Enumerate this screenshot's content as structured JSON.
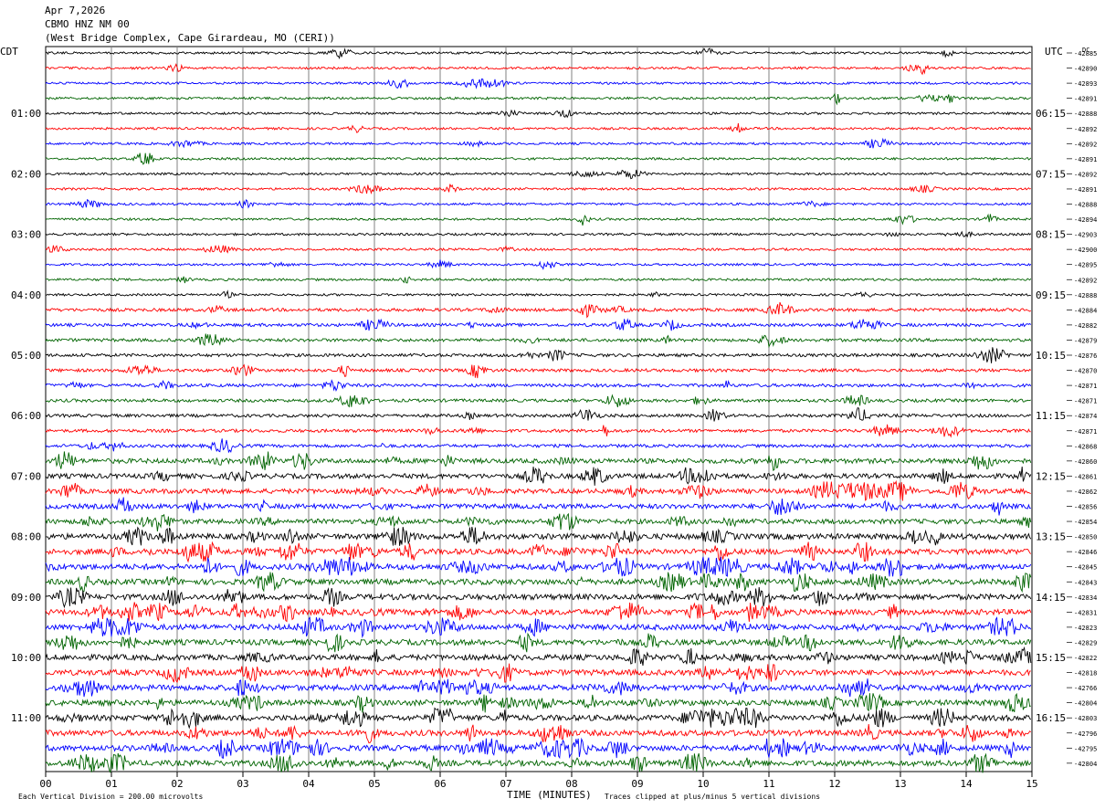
{
  "header": {
    "date": "Apr 7,2026",
    "station": "CBMO HNZ NM 00",
    "location": "(West Bridge Complex, Cape Girardeau, MO (CERI))"
  },
  "axis_labels": {
    "left_zone": "CDT",
    "right_zone": "UTC",
    "dc_label": "DC",
    "x_title": "TIME (MINUTES)",
    "scale_note": "Each Vertical Division =  200.00 microvolts",
    "clip_note": "Traces clipped at plus/minus 5 vertical divisions"
  },
  "colors": {
    "trace_cycle": [
      "#000000",
      "#ff0000",
      "#0000ff",
      "#006400"
    ],
    "grid": "#808080"
  },
  "chart_data": {
    "type": "line",
    "title": "CBMO HNZ NM 00",
    "xlabel": "TIME (MINUTES)",
    "xlim": [
      0,
      15
    ],
    "x_ticks": [
      "00",
      "01",
      "02",
      "03",
      "04",
      "05",
      "06",
      "07",
      "08",
      "09",
      "10",
      "11",
      "12",
      "13",
      "14",
      "15"
    ],
    "left_hour_labels": [
      "01:00",
      "02:00",
      "03:00",
      "04:00",
      "05:00",
      "06:00",
      "07:00",
      "08:00",
      "09:00",
      "10:00",
      "11:00"
    ],
    "left_hour_rows": [
      4,
      8,
      12,
      16,
      20,
      24,
      28,
      32,
      36,
      40,
      44
    ],
    "right_hour_labels": [
      "06:15",
      "07:15",
      "08:15",
      "09:15",
      "10:15",
      "11:15",
      "12:15",
      "13:15",
      "14:15",
      "15:15",
      "16:15"
    ],
    "dc_offsets": [
      -42885,
      -42890,
      -42893,
      -42891,
      -42888,
      -42892,
      -42892,
      -42891,
      -42892,
      -42891,
      -42888,
      -42894,
      -42903,
      -42900,
      -42895,
      -42892,
      -42888,
      -42884,
      -42882,
      -42879,
      -42876,
      -42870,
      -42871,
      -42871,
      -42874,
      -42871,
      -42868,
      -42860,
      -42861,
      -42862,
      -42856,
      -42854,
      -42850,
      -42846,
      -42845,
      -42843,
      -42834,
      -42831,
      -42823,
      -42829,
      -42822,
      -42818,
      -42766,
      -42804,
      -42803,
      -42796,
      -42795,
      -42804
    ],
    "trace_activity": [
      1,
      1,
      1,
      1,
      1,
      1,
      1,
      1,
      1,
      1,
      1,
      1,
      1,
      1,
      1,
      1,
      1,
      2,
      2,
      2,
      2,
      2,
      2,
      2,
      2,
      2,
      2,
      4,
      4,
      4,
      4,
      4,
      5,
      5,
      5,
      5,
      5,
      5,
      5,
      5,
      5,
      5,
      5,
      5,
      5,
      5,
      5,
      5
    ],
    "y_unit": "microvolts",
    "division_microvolts": 200.0,
    "clip_divisions": 5
  }
}
